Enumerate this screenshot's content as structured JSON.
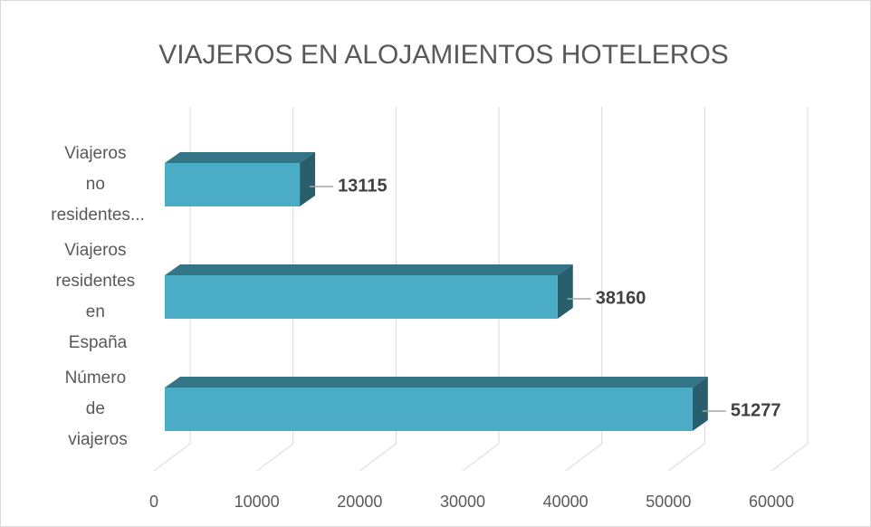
{
  "chart_data": {
    "type": "bar3d",
    "orientation": "horizontal",
    "title": "VIAJEROS EN ALOJAMIENTOS HOTELEROS",
    "categories": [
      "Viajeros no residentes...",
      "Viajeros residentes en España",
      "Número de viajeros"
    ],
    "values": [
      13115,
      38160,
      51277
    ],
    "color": "#4bacc6",
    "xlim": [
      0,
      60000
    ],
    "xticks": [
      0,
      10000,
      20000,
      30000,
      40000,
      50000,
      60000
    ],
    "grid": true
  }
}
